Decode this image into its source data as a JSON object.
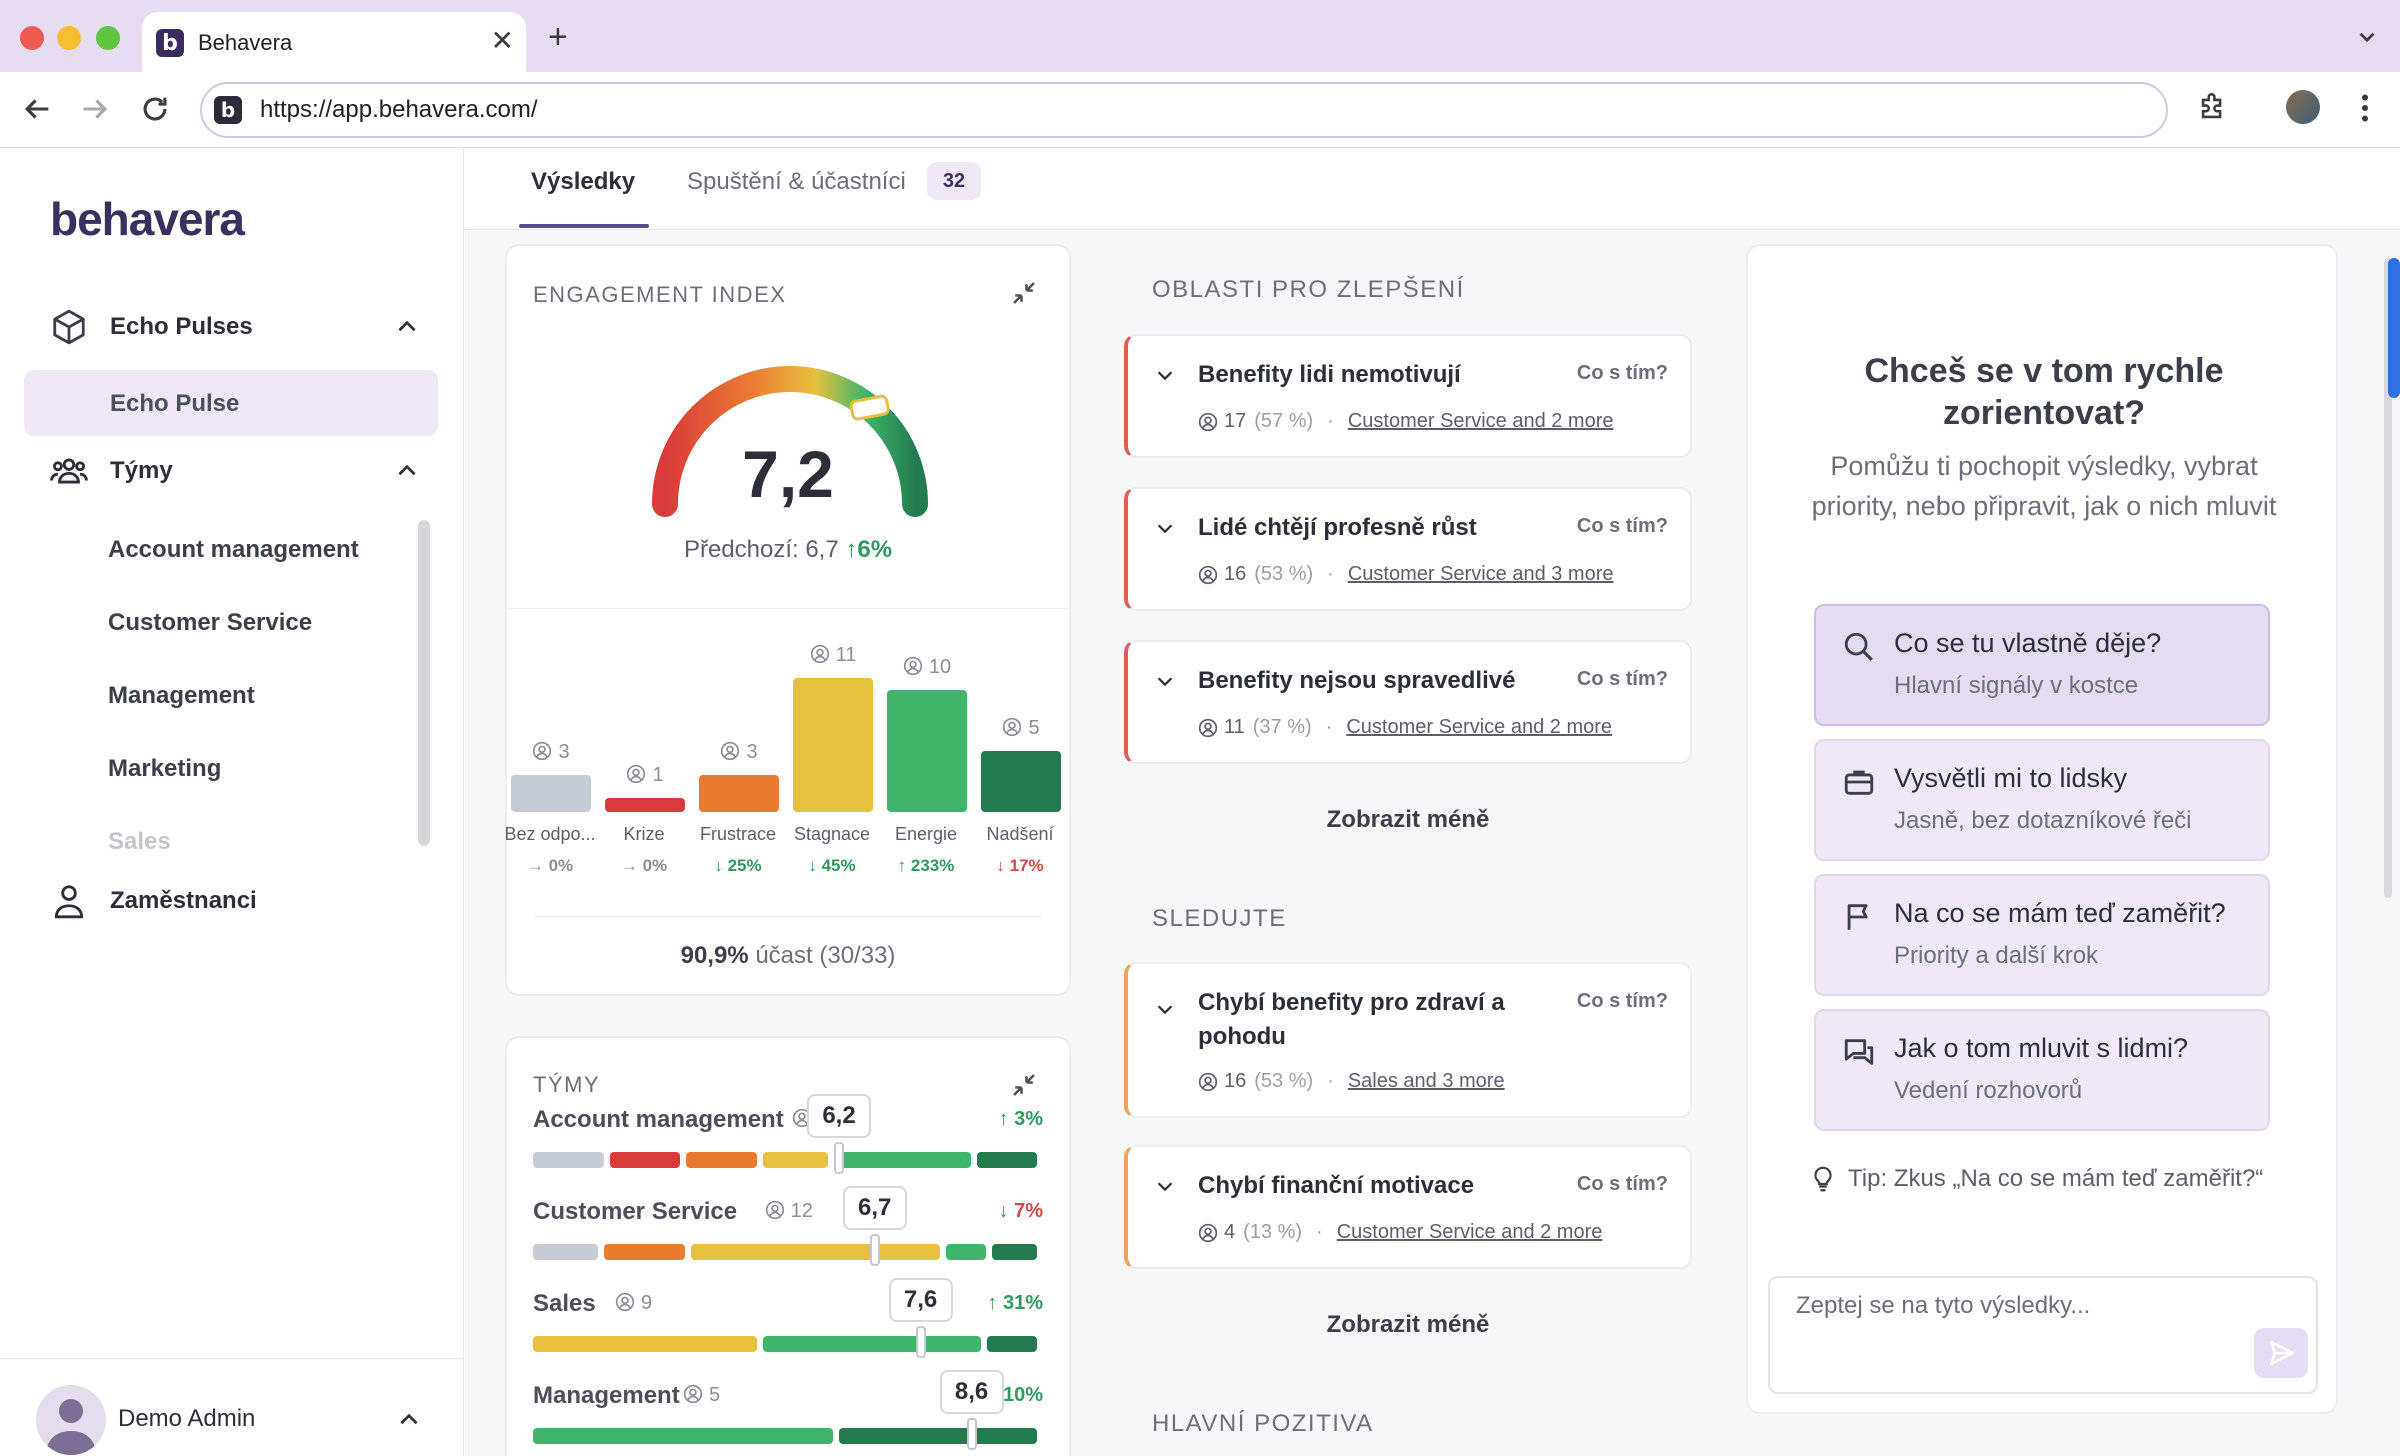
{
  "browser": {
    "tab_title": "Behavera",
    "url": "https://app.behavera.com/",
    "favicon_letter": "b",
    "newtab_symbol": "+",
    "close_symbol": "✕"
  },
  "sidebar": {
    "logo": "behavera",
    "group_pulses": "Echo Pulses",
    "selected_item": "Echo Pulse",
    "group_teams": "Týmy",
    "teams": [
      "Account management",
      "Customer Service",
      "Management",
      "Marketing",
      "Sales"
    ],
    "employees": "Zaměstnanci",
    "user_name": "Demo Admin"
  },
  "tabs": {
    "results": "Výsledky",
    "launch": "Spuštění & účastníci",
    "launch_count": "32"
  },
  "engagement": {
    "title": "ENGAGEMENT INDEX",
    "value": "7,2",
    "gauge_fraction": 0.72,
    "previous_label": "Předchozí: 6,7",
    "previous_change": "↑6%",
    "participation_bold": "90,9%",
    "participation_rest": "účast (30/33)"
  },
  "chart_data": {
    "type": "bar",
    "categories": [
      "Bez odpo...",
      "Krize",
      "Frustrace",
      "Stagnace",
      "Energie",
      "Nadšení"
    ],
    "values": [
      3,
      1,
      3,
      11,
      10,
      5
    ],
    "changes": [
      "→ 0%",
      "→ 0%",
      "↓ 25%",
      "↓ 45%",
      "↑ 233%",
      "↓ 17%"
    ],
    "colors": [
      "#c5ccd6",
      "#d93a3a",
      "#ea7c32",
      "#e8c040",
      "#3fb56b",
      "#237a4f"
    ],
    "change_colors": [
      "#8a8e9a",
      "#8a8e9a",
      "#2e9a5e",
      "#2e9a5e",
      "#2e9a5e",
      "#d94848"
    ]
  },
  "teams_card": {
    "title": "TÝMY",
    "rows": [
      {
        "name": "Account management",
        "count": "",
        "change": "↑ 3%",
        "change_color": "#2e9a5e",
        "score": "6,2",
        "score_pos": 0.6,
        "segments": [
          {
            "w": 0.15,
            "c": "#c5ccd6"
          },
          {
            "w": 0.15,
            "c": "#d93a3a"
          },
          {
            "w": 0.15,
            "c": "#ea7c32"
          },
          {
            "w": 0.14,
            "c": "#e8c040"
          },
          {
            "w": 0.28,
            "c": "#3fb56b"
          },
          {
            "w": 0.13,
            "c": "#237a4f"
          }
        ]
      },
      {
        "name": "Customer Service",
        "count": "12",
        "change": "↓ 7%",
        "change_color": "#d94848",
        "score": "6,7",
        "score_pos": 0.67,
        "segments": [
          {
            "w": 0.14,
            "c": "#c5ccd6"
          },
          {
            "w": 0.17,
            "c": "#ea7c32"
          },
          {
            "w": 0.5,
            "c": "#e8c040"
          },
          {
            "w": 0.09,
            "c": "#3fb56b"
          },
          {
            "w": 0.1,
            "c": "#237a4f"
          }
        ]
      },
      {
        "name": "Sales",
        "count": "9",
        "change": "↑ 31%",
        "change_color": "#2e9a5e",
        "score": "7,6",
        "score_pos": 0.76,
        "segments": [
          {
            "w": 0.45,
            "c": "#e8c040"
          },
          {
            "w": 0.44,
            "c": "#3fb56b"
          },
          {
            "w": 0.11,
            "c": "#237a4f"
          }
        ]
      },
      {
        "name": "Management",
        "count": "5",
        "change": "10%",
        "change_color": "#2e9a5e",
        "score": "8,6",
        "score_pos": 0.86,
        "segments": [
          {
            "w": 0.6,
            "c": "#3fb56b"
          },
          {
            "w": 0.4,
            "c": "#237a4f"
          }
        ]
      }
    ]
  },
  "improve": {
    "title": "OBLASTI PRO ZLEPŠENÍ",
    "action": "Co s tím?",
    "items": [
      {
        "title": "Benefity lidi nemotivují",
        "count": "17",
        "pct": "(57 %)",
        "teams": "Customer Service and 2 more"
      },
      {
        "title": "Lidé chtějí profesně růst",
        "count": "16",
        "pct": "(53 %)",
        "teams": "Customer Service and 3 more"
      },
      {
        "title": "Benefity nejsou spravedlivé",
        "count": "11",
        "pct": "(37 %)",
        "teams": "Customer Service and 2 more"
      }
    ],
    "show_less": "Zobrazit méně"
  },
  "watch": {
    "title": "SLEDUJTE",
    "items": [
      {
        "title": "Chybí benefity pro zdraví a pohodu",
        "count": "16",
        "pct": "(53 %)",
        "teams": "Sales and 3 more"
      },
      {
        "title": "Chybí finanční motivace",
        "count": "4",
        "pct": "(13 %)",
        "teams": "Customer Service and 2 more"
      }
    ],
    "show_less": "Zobrazit méně"
  },
  "positives": {
    "title": "HLAVNÍ POZITIVA"
  },
  "assistant": {
    "heading": "Chceš se v tom rychle zorientovat?",
    "sub": "Pomůžu ti pochopit výsledky, vybrat priority, nebo připravit, jak o nich mluvit",
    "options": [
      {
        "title": "Co se tu vlastně děje?",
        "sub": "Hlavní signály v kostce",
        "icon": "search-icon"
      },
      {
        "title": "Vysvětli mi to lidsky",
        "sub": "Jasně, bez dotazníkové řeči",
        "icon": "briefcase-icon"
      },
      {
        "title": "Na co se mám teď zaměřit?",
        "sub": "Priority a další krok",
        "icon": "flag-icon"
      },
      {
        "title": "Jak o tom mluvit s lidmi?",
        "sub": "Vedení rozhovorů",
        "icon": "chat-icon"
      }
    ],
    "tip": "Tip: Zkus „Na co se mám teď zaměřit?“",
    "input_placeholder": "Zeptej se na tyto výsledky..."
  }
}
